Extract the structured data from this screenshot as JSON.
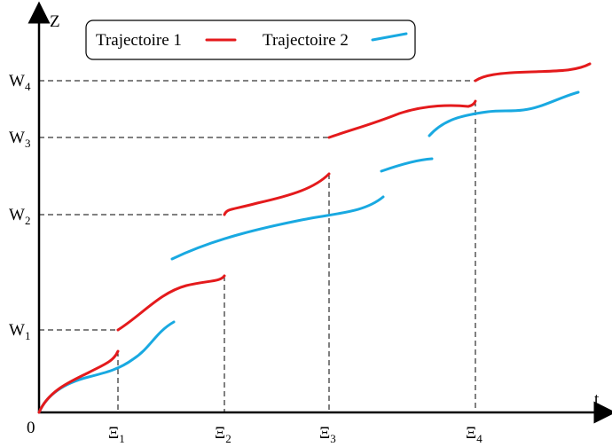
{
  "axes": {
    "y_label": "Z",
    "x_label": "t",
    "origin": "0"
  },
  "legend": [
    "Trajectoire 1",
    "Trajectoire 2"
  ],
  "y_levels": [
    {
      "base": "W",
      "sub": "1"
    },
    {
      "base": "W",
      "sub": "2"
    },
    {
      "base": "W",
      "sub": "3"
    },
    {
      "base": "W",
      "sub": "4"
    }
  ],
  "x_events": [
    {
      "base": "Ξ",
      "sub": "1"
    },
    {
      "base": "Ξ",
      "sub": "2"
    },
    {
      "base": "Ξ",
      "sub": "3"
    },
    {
      "base": "Ξ",
      "sub": "4"
    }
  ]
}
